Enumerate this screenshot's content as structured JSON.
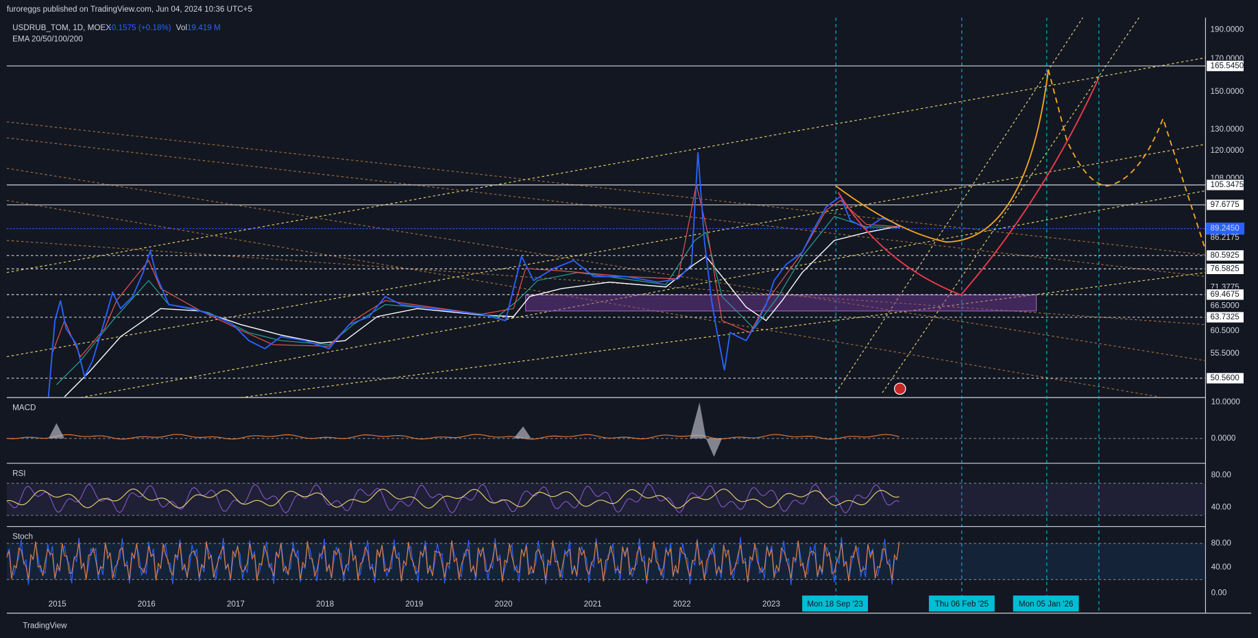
{
  "header": {
    "title": "furoreggs published on TradingView.com, Jun 04, 2024 10:36 UTC+5"
  },
  "legend": {
    "symbol": "USDRUB_TOM, 1D, MOEX",
    "change": "+0.1575 (+0.18%)",
    "vol_label": "Vol",
    "vol_value": "19.419 M",
    "indicator": "EMA 20/50/100/200"
  },
  "price_axis": [
    {
      "value": 190,
      "label": "190.0000"
    },
    {
      "value": 170,
      "label": "170.0000"
    },
    {
      "value": 165.545,
      "label": "165.5450",
      "boxed": true
    },
    {
      "value": 150,
      "label": "150.0000"
    },
    {
      "value": 130,
      "label": "130.0000"
    },
    {
      "value": 120,
      "label": "120.0000"
    },
    {
      "value": 108,
      "label": "108.0000"
    },
    {
      "value": 105.3475,
      "label": "105.3475",
      "boxed": true
    },
    {
      "value": 97.6775,
      "label": "97.6775",
      "boxed": true
    },
    {
      "value": 89.245,
      "label": "89.2450",
      "current": true
    },
    {
      "value": 86.2175,
      "label": "86.2175"
    },
    {
      "value": 80.5925,
      "label": "80.5925",
      "boxed": true
    },
    {
      "value": 76.5825,
      "label": "76.5825",
      "boxed": true
    },
    {
      "value": 71.3775,
      "label": "71.3775"
    },
    {
      "value": 69.4675,
      "label": "69.4675",
      "boxed": true
    },
    {
      "value": 66.5,
      "label": "66.5000"
    },
    {
      "value": 63.7325,
      "label": "63.7325",
      "boxed": true
    },
    {
      "value": 60.5,
      "label": "60.5000"
    },
    {
      "value": 55.5,
      "label": "55.5000"
    },
    {
      "value": 50.56,
      "label": "50.5600",
      "boxed": true
    }
  ],
  "panes": {
    "macd": {
      "name": "MACD",
      "ticks": [
        "10.0000",
        "0.0000"
      ]
    },
    "rsi": {
      "name": "RSI",
      "ticks": [
        "80.00",
        "40.00"
      ]
    },
    "stoch": {
      "name": "Stoch",
      "ticks": [
        "80.00",
        "40.00",
        "0.00"
      ]
    }
  },
  "time_axis": {
    "years": [
      "2015",
      "2016",
      "2017",
      "2018",
      "2019",
      "2020",
      "2021",
      "2022",
      "2023"
    ],
    "markers": [
      "Mon 18 Sep '23",
      "Thu 06 Feb '25",
      "Mon 05 Jan '26"
    ]
  },
  "footer": {
    "brand": "TradingView"
  }
}
